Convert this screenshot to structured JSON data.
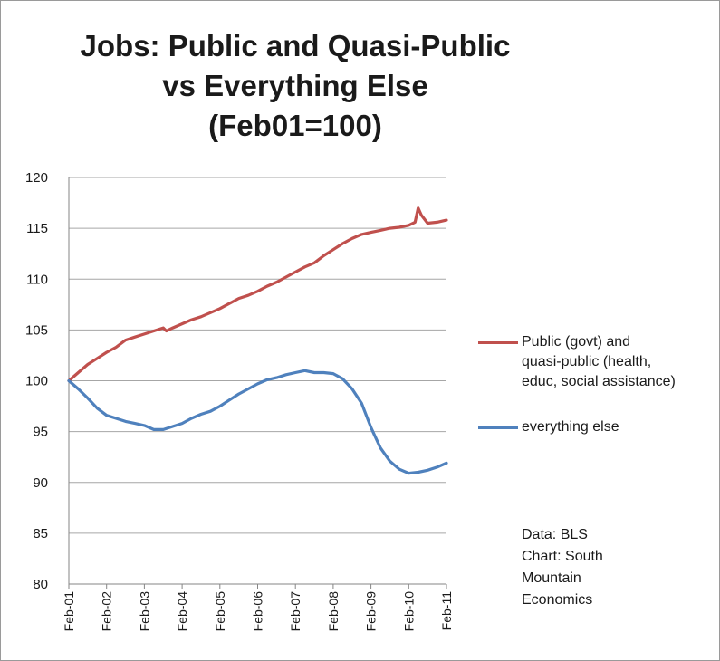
{
  "chart_data": {
    "type": "line",
    "title_lines": [
      "Jobs: Public and Quasi-Public",
      "vs Everything Else",
      "(Feb01=100)"
    ],
    "xlabel": "",
    "ylabel": "",
    "ylim": [
      80,
      120
    ],
    "yticks": [
      80,
      85,
      90,
      95,
      100,
      105,
      110,
      115,
      120
    ],
    "x_categories": [
      "Feb-01",
      "Feb-02",
      "Feb-03",
      "Feb-04",
      "Feb-05",
      "Feb-06",
      "Feb-07",
      "Feb-08",
      "Feb-09",
      "Feb-10",
      "Feb-11"
    ],
    "grid": "horizontal",
    "legend_position": "right",
    "series": [
      {
        "name": "Public (govt) and quasi-public (health, educ, social assistance)",
        "name_lines": [
          "Public (govt) and",
          "quasi-public (health,",
          "educ, social assistance)"
        ],
        "color": "#c0504d",
        "points": [
          [
            "Feb-01",
            100.0
          ],
          [
            "May-01",
            100.8
          ],
          [
            "Aug-01",
            101.6
          ],
          [
            "Nov-01",
            102.2
          ],
          [
            "Feb-02",
            102.8
          ],
          [
            "May-02",
            103.3
          ],
          [
            "Aug-02",
            104.0
          ],
          [
            "Nov-02",
            104.3
          ],
          [
            "Feb-03",
            104.6
          ],
          [
            "May-03",
            104.9
          ],
          [
            "Aug-03",
            105.2
          ],
          [
            "Sep-03",
            104.9
          ],
          [
            "Nov-03",
            105.2
          ],
          [
            "Feb-04",
            105.6
          ],
          [
            "May-04",
            106.0
          ],
          [
            "Aug-04",
            106.3
          ],
          [
            "Nov-04",
            106.7
          ],
          [
            "Feb-05",
            107.1
          ],
          [
            "May-05",
            107.6
          ],
          [
            "Aug-05",
            108.1
          ],
          [
            "Nov-05",
            108.4
          ],
          [
            "Feb-06",
            108.8
          ],
          [
            "May-06",
            109.3
          ],
          [
            "Aug-06",
            109.7
          ],
          [
            "Nov-06",
            110.2
          ],
          [
            "Feb-07",
            110.7
          ],
          [
            "May-07",
            111.2
          ],
          [
            "Aug-07",
            111.6
          ],
          [
            "Nov-07",
            112.3
          ],
          [
            "Feb-08",
            112.9
          ],
          [
            "May-08",
            113.5
          ],
          [
            "Aug-08",
            114.0
          ],
          [
            "Nov-08",
            114.4
          ],
          [
            "Feb-09",
            114.6
          ],
          [
            "May-09",
            114.8
          ],
          [
            "Aug-09",
            115.0
          ],
          [
            "Nov-09",
            115.1
          ],
          [
            "Feb-10",
            115.3
          ],
          [
            "Apr-10",
            115.6
          ],
          [
            "May-10",
            117.0
          ],
          [
            "Jun-10",
            116.3
          ],
          [
            "Aug-10",
            115.5
          ],
          [
            "Nov-10",
            115.6
          ],
          [
            "Feb-11",
            115.8
          ]
        ]
      },
      {
        "name": "everything else",
        "name_lines": [
          "everything else"
        ],
        "color": "#4f81bd",
        "points": [
          [
            "Feb-01",
            100.0
          ],
          [
            "May-01",
            99.2
          ],
          [
            "Aug-01",
            98.3
          ],
          [
            "Nov-01",
            97.3
          ],
          [
            "Feb-02",
            96.6
          ],
          [
            "May-02",
            96.3
          ],
          [
            "Aug-02",
            96.0
          ],
          [
            "Nov-02",
            95.8
          ],
          [
            "Feb-03",
            95.6
          ],
          [
            "May-03",
            95.2
          ],
          [
            "Aug-03",
            95.2
          ],
          [
            "Nov-03",
            95.5
          ],
          [
            "Feb-04",
            95.8
          ],
          [
            "May-04",
            96.3
          ],
          [
            "Aug-04",
            96.7
          ],
          [
            "Nov-04",
            97.0
          ],
          [
            "Feb-05",
            97.5
          ],
          [
            "May-05",
            98.1
          ],
          [
            "Aug-05",
            98.7
          ],
          [
            "Nov-05",
            99.2
          ],
          [
            "Feb-06",
            99.7
          ],
          [
            "May-06",
            100.1
          ],
          [
            "Aug-06",
            100.3
          ],
          [
            "Nov-06",
            100.6
          ],
          [
            "Feb-07",
            100.8
          ],
          [
            "May-07",
            101.0
          ],
          [
            "Aug-07",
            100.8
          ],
          [
            "Nov-07",
            100.8
          ],
          [
            "Feb-08",
            100.7
          ],
          [
            "May-08",
            100.2
          ],
          [
            "Aug-08",
            99.2
          ],
          [
            "Nov-08",
            97.8
          ],
          [
            "Feb-09",
            95.4
          ],
          [
            "May-09",
            93.4
          ],
          [
            "Aug-09",
            92.1
          ],
          [
            "Nov-09",
            91.3
          ],
          [
            "Feb-10",
            90.9
          ],
          [
            "May-10",
            91.0
          ],
          [
            "Aug-10",
            91.2
          ],
          [
            "Nov-10",
            91.5
          ],
          [
            "Feb-11",
            91.9
          ]
        ]
      }
    ]
  },
  "source_note": [
    "Data: BLS",
    "Chart: South",
    "Mountain",
    "Economics"
  ]
}
